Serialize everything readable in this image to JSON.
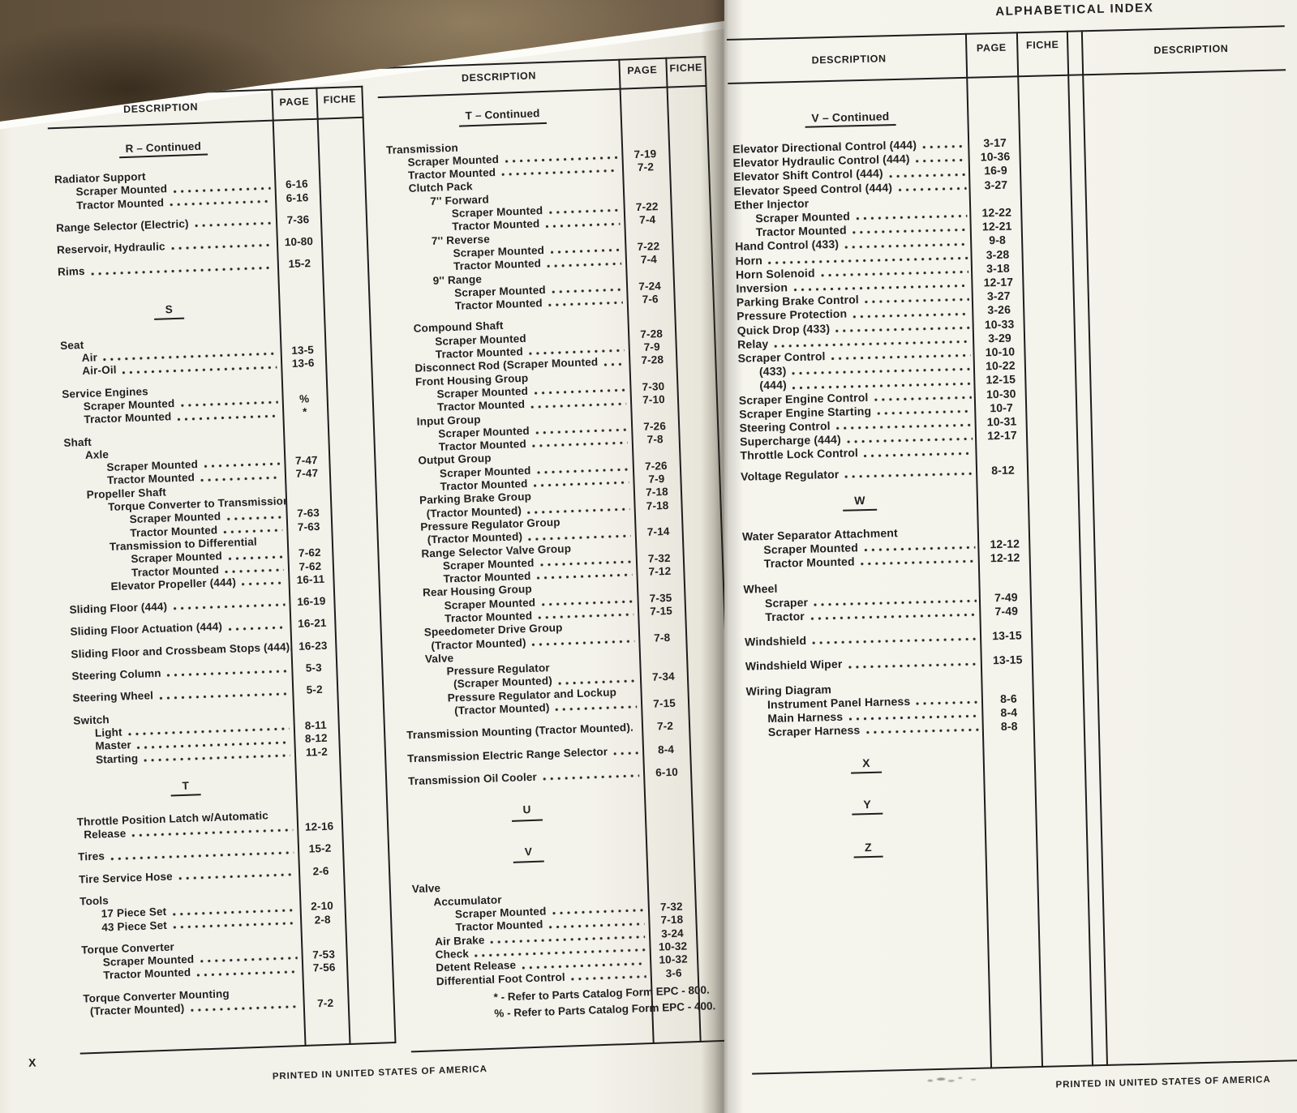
{
  "left_page": {
    "title": "ALPHABETICAL INDEX",
    "page_number": "X",
    "footer": "PRINTED IN UNITED STATES OF AMERICA",
    "col1": {
      "headers": {
        "description": "DESCRIPTION",
        "page": "PAGE",
        "fiche": "FICHE"
      },
      "rows": [
        {
          "h": "R – Continued"
        },
        {
          "t": "Radiator Support",
          "i": 0,
          "g": 14
        },
        {
          "t": "Scraper Mounted",
          "i": 1,
          "d": 1,
          "p": "6-16"
        },
        {
          "t": "Tractor Mounted",
          "i": 1,
          "d": 1,
          "p": "6-16"
        },
        {
          "t": "Range Selector (Electric)",
          "i": 0,
          "d": 1,
          "p": "7-36",
          "g": 11
        },
        {
          "t": "Reservoir, Hydraulic",
          "i": 0,
          "d": 1,
          "p": "10-80",
          "g": 11
        },
        {
          "t": "Rims",
          "i": 0,
          "d": 1,
          "p": "15-2",
          "g": 11
        },
        {
          "h": "S",
          "g": 34
        },
        {
          "t": "Seat",
          "i": 0,
          "g": 16
        },
        {
          "t": "Air",
          "i": 1,
          "d": 1,
          "p": "13-5"
        },
        {
          "t": "Air-Oil",
          "i": 1,
          "d": 1,
          "p": "13-6"
        },
        {
          "t": "Service Engines",
          "i": 0,
          "g": 11
        },
        {
          "t": "Scraper Mounted",
          "i": 1,
          "d": 1,
          "p": "%"
        },
        {
          "t": "Tractor Mounted",
          "i": 1,
          "d": 1,
          "p": "*"
        },
        {
          "t": "Shaft",
          "i": 0,
          "g": 11
        },
        {
          "t": "Axle",
          "i": 1
        },
        {
          "t": "Scraper Mounted",
          "i": 2,
          "d": 1,
          "p": "7-47"
        },
        {
          "t": "Tractor Mounted",
          "i": 2,
          "d": 1,
          "p": "7-47"
        },
        {
          "t": "Propeller Shaft",
          "i": 1
        },
        {
          "t": "Torque Converter to Transmission",
          "i": 2
        },
        {
          "t": "Scraper Mounted",
          "i": 3,
          "d": 1,
          "p": "7-63"
        },
        {
          "t": "Tractor Mounted",
          "i": 3,
          "d": 1,
          "p": "7-63"
        },
        {
          "t": "Transmission to Differential",
          "i": 2
        },
        {
          "t": "Scraper Mounted",
          "i": 3,
          "d": 1,
          "p": "7-62"
        },
        {
          "t": "Tractor Mounted",
          "i": 3,
          "d": 1,
          "p": "7-62"
        },
        {
          "t": "Elevator Propeller (444)",
          "i": 2,
          "d": 1,
          "p": "16-11"
        },
        {
          "t": "Sliding Floor (444)",
          "i": 0,
          "d": 1,
          "p": "16-19",
          "g": 11
        },
        {
          "t": "Sliding Floor Actuation (444)",
          "i": 0,
          "d": 1,
          "p": "16-21",
          "g": 11
        },
        {
          "t": "Sliding Floor and Crossbeam Stops (444).",
          "i": 0,
          "d": 0,
          "p": "16-23",
          "g": 11
        },
        {
          "t": "Steering Column",
          "i": 0,
          "d": 1,
          "p": "5-3",
          "g": 11
        },
        {
          "t": "Steering Wheel",
          "i": 0,
          "d": 1,
          "p": "5-2",
          "g": 11
        },
        {
          "t": "Switch",
          "i": 0,
          "g": 11
        },
        {
          "t": "Light",
          "i": 1,
          "d": 1,
          "p": "8-11"
        },
        {
          "t": "Master",
          "i": 1,
          "d": 1,
          "p": "8-12"
        },
        {
          "t": "Starting",
          "i": 1,
          "d": 1,
          "p": "11-2"
        },
        {
          "h": "T",
          "g": 20
        },
        {
          "t": "Throttle Position Latch w/Automatic",
          "i": 0,
          "g": 10
        },
        {
          "t": "Release",
          "i": 0,
          "w": 1,
          "d": 1,
          "p": "12-16"
        },
        {
          "t": "Tires",
          "i": 0,
          "d": 1,
          "p": "15-2",
          "g": 11
        },
        {
          "t": "Tire Service Hose",
          "i": 0,
          "d": 1,
          "p": "2-6",
          "g": 11
        },
        {
          "t": "Tools",
          "i": 0,
          "g": 11
        },
        {
          "t": "17 Piece Set",
          "i": 1,
          "d": 1,
          "p": "2-10"
        },
        {
          "t": "43 Piece Set",
          "i": 1,
          "d": 1,
          "p": "2-8"
        },
        {
          "t": "Torque Converter",
          "i": 0,
          "g": 11
        },
        {
          "t": "Scraper Mounted",
          "i": 1,
          "d": 1,
          "p": "7-53"
        },
        {
          "t": "Tractor Mounted",
          "i": 1,
          "d": 1,
          "p": "7-56"
        },
        {
          "t": "Torque Converter Mounting",
          "i": 0,
          "g": 11
        },
        {
          "t": "(Tracter Mounted)",
          "i": 0,
          "w": 1,
          "d": 1,
          "p": "7-2"
        }
      ]
    },
    "col2": {
      "headers": {
        "description": "DESCRIPTION",
        "page": "PAGE",
        "fiche": "FICHE"
      },
      "rows": [
        {
          "h": "T – Continued"
        },
        {
          "t": "Transmission",
          "i": 0,
          "g": 18
        },
        {
          "t": "Scraper Mounted",
          "i": 1,
          "d": 1,
          "p": "7-19"
        },
        {
          "t": "Tractor Mounted",
          "i": 1,
          "d": 1,
          "p": "7-2"
        },
        {
          "t": "Clutch Pack",
          "i": 1
        },
        {
          "t": "7'' Forward",
          "i": 2
        },
        {
          "t": "Scraper Mounted",
          "i": 3,
          "d": 1,
          "p": "7-22"
        },
        {
          "t": "Tractor Mounted",
          "i": 3,
          "d": 1,
          "p": "7-4"
        },
        {
          "t": "7'' Reverse",
          "i": 2
        },
        {
          "t": "Scraper Mounted",
          "i": 3,
          "d": 1,
          "p": "7-22"
        },
        {
          "t": "Tractor Mounted",
          "i": 3,
          "d": 1,
          "p": "7-4"
        },
        {
          "t": "9'' Range",
          "i": 2
        },
        {
          "t": "Scraper Mounted",
          "i": 3,
          "d": 1,
          "p": "7-24"
        },
        {
          "t": "Tractor Mounted",
          "i": 3,
          "d": 1,
          "p": "7-6"
        },
        {
          "t": "Compound Shaft",
          "i": 1,
          "g": 10
        },
        {
          "t": "Scraper Mounted",
          "i": 2,
          "d": 0,
          "p": "7-28"
        },
        {
          "t": "Tractor Mounted",
          "i": 2,
          "d": 1,
          "p": "7-9"
        },
        {
          "t": "Disconnect Rod (Scraper Mounted",
          "i": 1,
          "d": 1,
          "p": "7-28"
        },
        {
          "t": "Front Housing Group",
          "i": 1
        },
        {
          "t": "Scraper Mounted",
          "i": 2,
          "d": 1,
          "p": "7-30"
        },
        {
          "t": "Tractor Mounted",
          "i": 2,
          "d": 1,
          "p": "7-10"
        },
        {
          "t": "Input Group",
          "i": 1
        },
        {
          "t": "Scraper Mounted",
          "i": 2,
          "d": 1,
          "p": "7-26"
        },
        {
          "t": "Tractor Mounted",
          "i": 2,
          "d": 1,
          "p": "7-8"
        },
        {
          "t": "Output Group",
          "i": 1
        },
        {
          "t": "Scraper Mounted",
          "i": 2,
          "d": 1,
          "p": "7-26"
        },
        {
          "t": "Tractor Mounted",
          "i": 2,
          "d": 1,
          "p": "7-9"
        },
        {
          "t": "Parking Brake Group",
          "i": 1,
          "d": 0,
          "p": "7-18"
        },
        {
          "t": "(Tractor Mounted)",
          "i": 1,
          "w": 1,
          "d": 1,
          "p": "7-18"
        },
        {
          "t": "Pressure Regulator Group",
          "i": 1
        },
        {
          "t": "(Tractor Mounted)",
          "i": 1,
          "w": 1,
          "d": 1,
          "p": "7-14"
        },
        {
          "t": "Range Selector Valve Group",
          "i": 1
        },
        {
          "t": "Scraper Mounted",
          "i": 2,
          "d": 1,
          "p": "7-32"
        },
        {
          "t": "Tractor Mounted",
          "i": 2,
          "d": 1,
          "p": "7-12"
        },
        {
          "t": "Rear Housing Group",
          "i": 1
        },
        {
          "t": "Scraper Mounted",
          "i": 2,
          "d": 1,
          "p": "7-35"
        },
        {
          "t": "Tractor Mounted",
          "i": 2,
          "d": 1,
          "p": "7-15"
        },
        {
          "t": "Speedometer Drive Group",
          "i": 1
        },
        {
          "t": "(Tractor Mounted)",
          "i": 1,
          "w": 1,
          "d": 1,
          "p": "7-8"
        },
        {
          "t": "Valve",
          "i": 1
        },
        {
          "t": "Pressure Regulator",
          "i": 2
        },
        {
          "t": "(Scraper Mounted)",
          "i": 2,
          "w": 1,
          "d": 1,
          "p": "7-34"
        },
        {
          "t": "Pressure Regulator and Lockup",
          "i": 2
        },
        {
          "t": "(Tractor Mounted)",
          "i": 2,
          "w": 1,
          "d": 1,
          "p": "7-15"
        },
        {
          "t": "Transmission Mounting (Tractor Mounted).",
          "i": 0,
          "d": 0,
          "p": "7-2",
          "g": 12
        },
        {
          "t": "Transmission Electric Range Selector",
          "i": 0,
          "d": 1,
          "p": "8-4",
          "g": 12
        },
        {
          "t": "Transmission Oil Cooler",
          "i": 0,
          "d": 1,
          "p": "6-10",
          "g": 12
        },
        {
          "h": "U",
          "g": 24
        },
        {
          "h": "V",
          "g": 30
        },
        {
          "t": "Valve",
          "i": 0,
          "g": 18
        },
        {
          "t": "Accumulator",
          "i": 1
        },
        {
          "t": "Scraper Mounted",
          "i": 2,
          "d": 1,
          "p": "7-32"
        },
        {
          "t": "Tractor Mounted",
          "i": 2,
          "d": 1,
          "p": "7-18"
        },
        {
          "t": "Air Brake",
          "i": 1,
          "d": 1,
          "p": "3-24"
        },
        {
          "t": "Check",
          "i": 1,
          "d": 1,
          "p": "10-32"
        },
        {
          "t": "Detent Release",
          "i": 1,
          "d": 1,
          "p": "10-32"
        },
        {
          "t": "Differential Foot Control",
          "i": 1,
          "d": 1,
          "p": "3-6"
        }
      ],
      "footnotes": [
        "* - Refer to Parts Catalog Form EPC - 800.",
        "% - Refer to Parts Catalog Form EPC - 400."
      ]
    }
  },
  "right_page": {
    "title": "ALPHABETICAL INDEX",
    "footer": "PRINTED IN UNITED STATES OF AMERICA",
    "col1": {
      "headers": {
        "description": "DESCRIPTION",
        "page": "PAGE",
        "fiche": "FICHE"
      },
      "rows": [
        {
          "h": "V – Continued"
        },
        {
          "t": "Elevator Directional Control (444)",
          "i": 0,
          "d": 1,
          "p": "3-17",
          "g": 16
        },
        {
          "t": "Elevator Hydraulic Control (444)",
          "i": 0,
          "d": 1,
          "p": "10-36"
        },
        {
          "t": "Elevator Shift Control (444)",
          "i": 0,
          "d": 1,
          "p": "16-9"
        },
        {
          "t": "Elevator Speed Control (444)",
          "i": 0,
          "d": 1,
          "p": "3-27"
        },
        {
          "t": "Ether Injector",
          "i": 0
        },
        {
          "t": "Scraper Mounted",
          "i": 1,
          "d": 1,
          "p": "12-22"
        },
        {
          "t": "Tractor Mounted",
          "i": 1,
          "d": 1,
          "p": "12-21"
        },
        {
          "t": "Hand Control (433)",
          "i": 0,
          "d": 1,
          "p": "9-8"
        },
        {
          "t": "Horn",
          "i": 0,
          "d": 1,
          "p": "3-28"
        },
        {
          "t": "Horn Solenoid",
          "i": 0,
          "d": 1,
          "p": "3-18"
        },
        {
          "t": "Inversion",
          "i": 0,
          "d": 1,
          "p": "12-17"
        },
        {
          "t": "Parking Brake Control",
          "i": 0,
          "d": 1,
          "p": "3-27"
        },
        {
          "t": "Pressure Protection",
          "i": 0,
          "d": 1,
          "p": "3-26"
        },
        {
          "t": "Quick Drop (433)",
          "i": 0,
          "d": 1,
          "p": "10-33"
        },
        {
          "t": "Relay",
          "i": 0,
          "d": 1,
          "p": "3-29"
        },
        {
          "t": "Scraper Control",
          "i": 0,
          "d": 1,
          "p": "10-10"
        },
        {
          "t": "(433)",
          "i": 1,
          "d": 1,
          "p": "10-22"
        },
        {
          "t": "(444)",
          "i": 1,
          "d": 1,
          "p": "12-15"
        },
        {
          "t": "Scraper Engine Control",
          "i": 0,
          "d": 1,
          "p": "10-30"
        },
        {
          "t": "Scraper Engine Starting",
          "i": 0,
          "d": 1,
          "p": "10-7"
        },
        {
          "t": "Steering Control",
          "i": 0,
          "d": 1,
          "p": "10-31"
        },
        {
          "t": "Supercharge (444)",
          "i": 0,
          "d": 1,
          "p": "12-17"
        },
        {
          "t": "Throttle Lock Control",
          "i": 0,
          "d": 1
        },
        {
          "t": "Voltage Regulator",
          "i": 0,
          "d": 1,
          "p": "8-12",
          "g": 8
        },
        {
          "h": "W",
          "g": 16
        },
        {
          "t": "Water Separator Attachment",
          "i": 0,
          "g": 18
        },
        {
          "t": "Scraper Mounted",
          "i": 1,
          "d": 1,
          "p": "12-12"
        },
        {
          "t": "Tractor Mounted",
          "i": 1,
          "d": 1,
          "p": "12-12"
        },
        {
          "t": "Wheel",
          "i": 0,
          "g": 14
        },
        {
          "t": "Scraper",
          "i": 1,
          "d": 1,
          "p": "7-49"
        },
        {
          "t": "Tractor",
          "i": 1,
          "d": 1,
          "p": "7-49"
        },
        {
          "t": "Windshield",
          "i": 0,
          "d": 1,
          "p": "13-15",
          "g": 13
        },
        {
          "t": "Windshield Wiper",
          "i": 0,
          "d": 1,
          "p": "13-15",
          "g": 13
        },
        {
          "t": "Wiring Diagram",
          "i": 0,
          "g": 13
        },
        {
          "t": "Instrument Panel Harness",
          "i": 1,
          "d": 1,
          "p": "8-6"
        },
        {
          "t": "Main Harness",
          "i": 1,
          "d": 1,
          "p": "8-4"
        },
        {
          "t": "Scraper Harness",
          "i": 1,
          "d": 1,
          "p": "8-8"
        },
        {
          "h": "X",
          "g": 24
        },
        {
          "h": "Y",
          "g": 30
        },
        {
          "h": "Z",
          "g": 32
        }
      ]
    },
    "col2": {
      "headers": {
        "description": "DESCRIPTION"
      }
    }
  }
}
